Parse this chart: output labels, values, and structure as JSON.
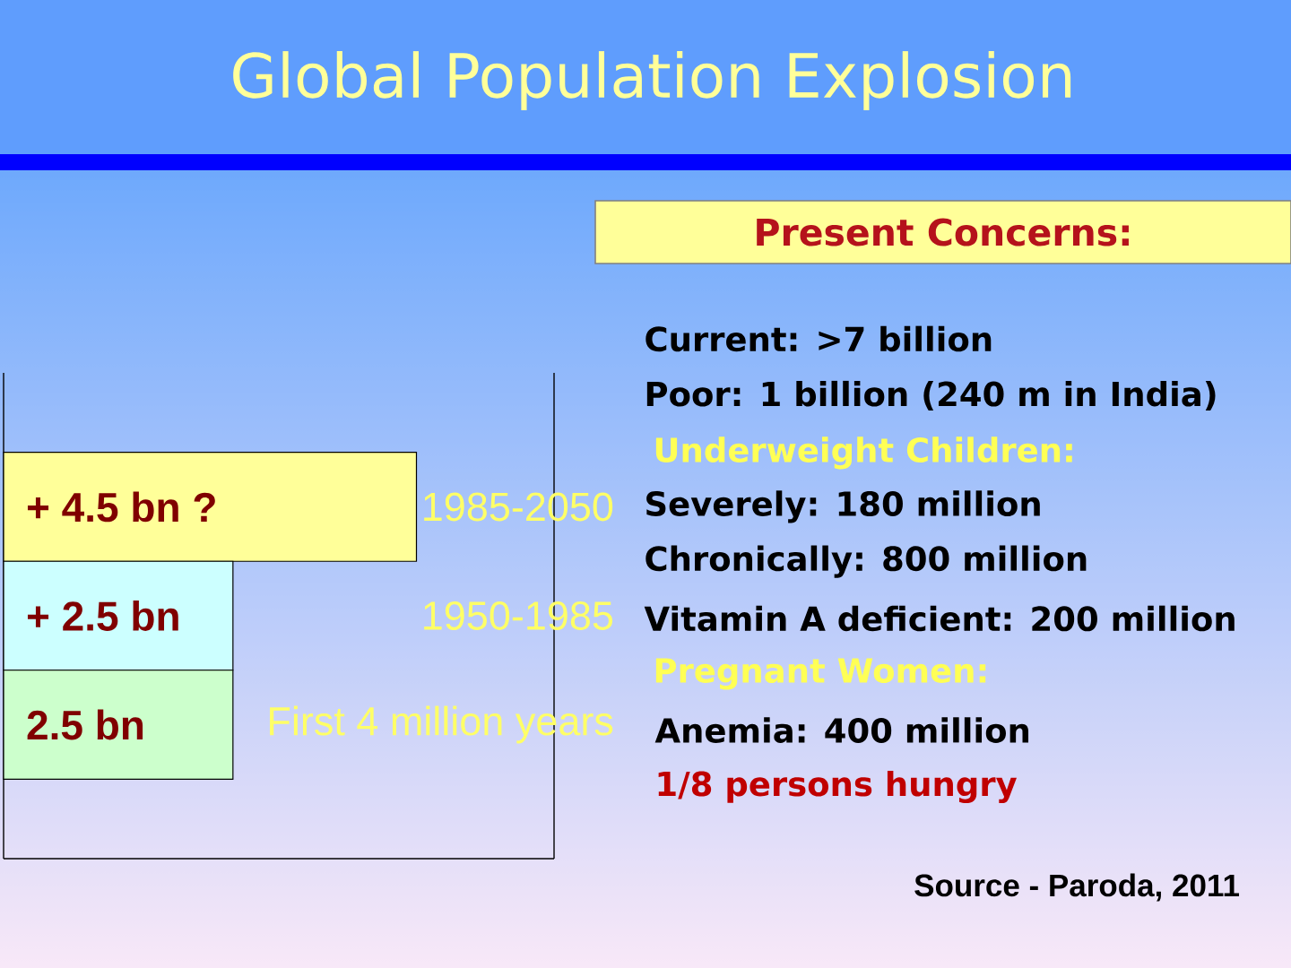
{
  "chart_data": {
    "type": "bar",
    "orientation": "horizontal",
    "title": "Global Population Explosion",
    "categories": [
      "1985-2050",
      "1950-1985",
      "First 4 million years"
    ],
    "values": [
      4.5,
      2.5,
      2.5
    ],
    "colors": [
      "#ffff99",
      "#ccffff",
      "#ccffcc"
    ],
    "value_labels": [
      "+ 4.5 bn ?",
      "+ 2.5 bn",
      "2.5 bn"
    ],
    "annotations": [
      "Present Concerns:",
      "Current: >7 billion",
      "Poor: 1 billion (240 m in India)",
      "Underweight Children:",
      "Severely: 180 million",
      "Chronically: 800 million",
      "Vitamin A deficient: 200 million",
      "Pregnant Women:",
      "Anemia: 400 million",
      "1/8 persons hungry",
      "Source - Paroda, 2011"
    ]
  }
}
